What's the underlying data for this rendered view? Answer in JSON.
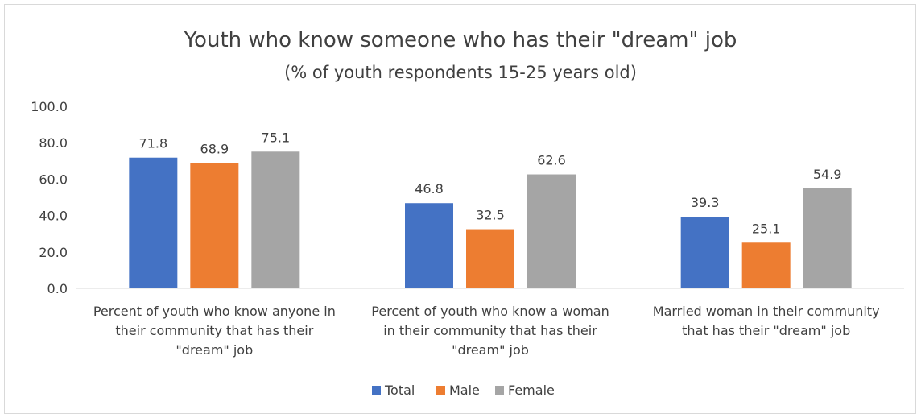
{
  "chart_data": {
    "type": "bar",
    "title": "Youth who know someone who has their \"dream\" job",
    "subtitle": "(% of youth respondents 15-25 years old)",
    "categories": [
      [
        "Percent of youth who know anyone in",
        "their community that has their",
        "\"dream\" job"
      ],
      [
        "Percent of youth who know a woman",
        "in their community that has their",
        "\"dream\" job"
      ],
      [
        "Married woman in their community",
        "that has their \"dream\" job"
      ]
    ],
    "series": [
      {
        "name": "Total",
        "color": "#4472c4",
        "values": [
          71.8,
          46.8,
          39.3
        ],
        "labels": [
          "71.8",
          "46.8",
          "39.3"
        ]
      },
      {
        "name": "Male",
        "color": "#ed7d31",
        "values": [
          68.9,
          32.5,
          25.1
        ],
        "labels": [
          "68.9",
          "32.5",
          "25.1"
        ]
      },
      {
        "name": "Female",
        "color": "#a5a5a5",
        "values": [
          75.1,
          62.6,
          54.9
        ],
        "labels": [
          "75.1",
          "62.6",
          "54.9"
        ]
      }
    ],
    "yticks": [
      "0.0",
      "20.0",
      "40.0",
      "60.0",
      "80.0",
      "100.0"
    ],
    "ylim": [
      0,
      100
    ],
    "grid": false,
    "legend": "bottom"
  }
}
